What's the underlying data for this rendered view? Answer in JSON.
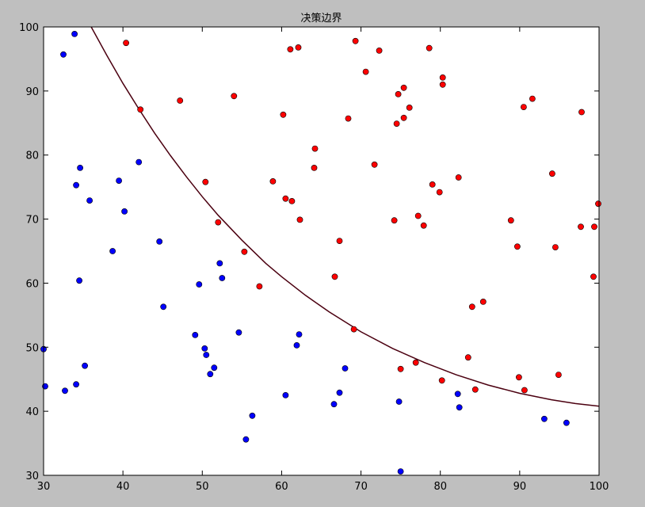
{
  "chart_data": {
    "type": "scatter",
    "title": "决策边界",
    "xlabel": "",
    "ylabel": "",
    "xlim": [
      30,
      100
    ],
    "ylim": [
      30,
      100
    ],
    "xticks": [
      30,
      40,
      50,
      60,
      70,
      80,
      90,
      100
    ],
    "yticks": [
      30,
      40,
      50,
      60,
      70,
      80,
      90,
      100
    ],
    "grid": false,
    "colors": {
      "negative": "#0000ff",
      "positive": "#ff0000",
      "boundary": "#4b0010",
      "background": "#bfbfbf",
      "plot_area": "#ffffff"
    },
    "series": [
      {
        "marker": "circle",
        "color": "#0000ff",
        "points": [
          [
            33.9,
            98.9
          ],
          [
            32.5,
            95.7
          ],
          [
            34.6,
            78.0
          ],
          [
            42.0,
            78.9
          ],
          [
            39.5,
            76.0
          ],
          [
            34.1,
            75.3
          ],
          [
            35.8,
            72.9
          ],
          [
            40.2,
            71.2
          ],
          [
            44.6,
            66.5
          ],
          [
            38.7,
            65.0
          ],
          [
            52.2,
            63.1
          ],
          [
            49.6,
            59.8
          ],
          [
            52.5,
            60.8
          ],
          [
            34.5,
            60.4
          ],
          [
            45.1,
            56.3
          ],
          [
            54.6,
            52.3
          ],
          [
            49.1,
            51.9
          ],
          [
            62.2,
            52.0
          ],
          [
            61.9,
            50.3
          ],
          [
            50.3,
            49.8
          ],
          [
            50.5,
            48.8
          ],
          [
            30.0,
            49.7
          ],
          [
            35.2,
            47.1
          ],
          [
            51.5,
            46.8
          ],
          [
            51.0,
            45.8
          ],
          [
            68.0,
            46.7
          ],
          [
            34.1,
            44.2
          ],
          [
            30.2,
            43.9
          ],
          [
            32.7,
            43.2
          ],
          [
            67.3,
            42.9
          ],
          [
            60.5,
            42.5
          ],
          [
            82.2,
            42.7
          ],
          [
            74.8,
            41.5
          ],
          [
            66.6,
            41.1
          ],
          [
            82.4,
            40.6
          ],
          [
            56.3,
            39.3
          ],
          [
            93.1,
            38.8
          ],
          [
            95.9,
            38.2
          ],
          [
            55.5,
            35.6
          ],
          [
            75.0,
            30.6
          ]
        ]
      },
      {
        "marker": "circle",
        "color": "#ff0000",
        "points": [
          [
            40.4,
            97.5
          ],
          [
            69.3,
            97.8
          ],
          [
            61.1,
            96.5
          ],
          [
            62.1,
            96.8
          ],
          [
            72.3,
            96.3
          ],
          [
            78.6,
            96.7
          ],
          [
            70.6,
            93.0
          ],
          [
            80.3,
            92.1
          ],
          [
            80.3,
            91.0
          ],
          [
            75.4,
            90.5
          ],
          [
            74.7,
            89.5
          ],
          [
            54.0,
            89.2
          ],
          [
            47.2,
            88.5
          ],
          [
            91.6,
            88.8
          ],
          [
            90.5,
            87.5
          ],
          [
            76.1,
            87.4
          ],
          [
            42.2,
            87.1
          ],
          [
            97.8,
            86.7
          ],
          [
            60.2,
            86.3
          ],
          [
            68.4,
            85.7
          ],
          [
            75.4,
            85.8
          ],
          [
            74.5,
            84.9
          ],
          [
            64.2,
            81.0
          ],
          [
            71.7,
            78.5
          ],
          [
            64.1,
            78.0
          ],
          [
            94.1,
            77.1
          ],
          [
            50.4,
            75.8
          ],
          [
            58.9,
            75.9
          ],
          [
            79.0,
            75.4
          ],
          [
            82.3,
            76.5
          ],
          [
            79.9,
            74.2
          ],
          [
            60.5,
            73.2
          ],
          [
            61.3,
            72.8
          ],
          [
            99.9,
            72.4
          ],
          [
            77.2,
            70.5
          ],
          [
            62.3,
            69.9
          ],
          [
            74.2,
            69.8
          ],
          [
            88.9,
            69.8
          ],
          [
            52.0,
            69.5
          ],
          [
            77.9,
            69.0
          ],
          [
            97.7,
            68.8
          ],
          [
            99.4,
            68.8
          ],
          [
            67.3,
            66.6
          ],
          [
            89.7,
            65.7
          ],
          [
            94.5,
            65.6
          ],
          [
            55.3,
            64.9
          ],
          [
            66.7,
            61.0
          ],
          [
            99.3,
            61.0
          ],
          [
            57.2,
            59.5
          ],
          [
            84.0,
            56.3
          ],
          [
            85.4,
            57.1
          ],
          [
            69.1,
            52.8
          ],
          [
            83.5,
            48.4
          ],
          [
            76.9,
            47.6
          ],
          [
            75.0,
            46.6
          ],
          [
            94.9,
            45.7
          ],
          [
            89.9,
            45.3
          ],
          [
            80.2,
            44.8
          ],
          [
            84.4,
            43.4
          ],
          [
            90.6,
            43.3
          ]
        ]
      }
    ],
    "boundary": [
      [
        36.0,
        100
      ],
      [
        38,
        95.5
      ],
      [
        40,
        91.2
      ],
      [
        42,
        87.2
      ],
      [
        44,
        83.4
      ],
      [
        46,
        79.9
      ],
      [
        48,
        76.6
      ],
      [
        50,
        73.5
      ],
      [
        52,
        70.6
      ],
      [
        55,
        66.7
      ],
      [
        58,
        63.1
      ],
      [
        60,
        61.0
      ],
      [
        63,
        58.1
      ],
      [
        66,
        55.5
      ],
      [
        70,
        52.4
      ],
      [
        74,
        49.8
      ],
      [
        78,
        47.6
      ],
      [
        82,
        45.7
      ],
      [
        86,
        44.1
      ],
      [
        90,
        42.8
      ],
      [
        94,
        41.8
      ],
      [
        97,
        41.2
      ],
      [
        100,
        40.8
      ]
    ]
  }
}
